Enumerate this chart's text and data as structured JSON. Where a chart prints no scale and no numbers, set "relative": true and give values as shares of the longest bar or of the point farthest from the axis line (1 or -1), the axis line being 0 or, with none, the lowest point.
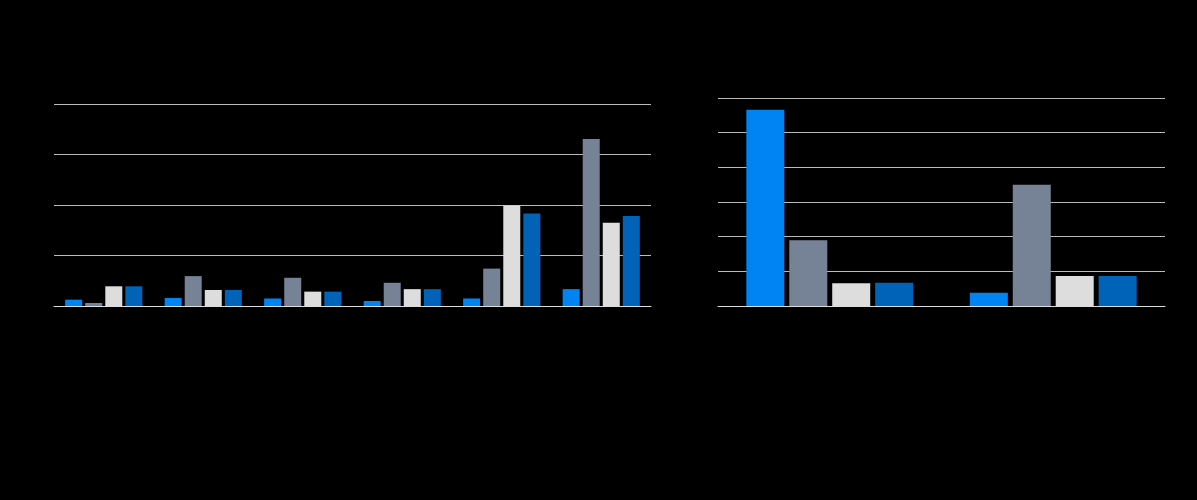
{
  "chart_data": [
    {
      "type": "bar",
      "relative": true,
      "grid": "y",
      "categories": [
        null,
        null,
        null,
        null,
        null,
        null
      ],
      "series": [
        {
          "color": "#0084f4",
          "values": [
            0.038,
            0.048,
            0.045,
            0.03,
            0.045,
            0.101
          ]
        },
        {
          "color": "#768396",
          "values": [
            0.01,
            0.179,
            0.169,
            0.139,
            0.224,
            1
          ]
        },
        {
          "color": "#dddddd",
          "values": [
            0.118,
            0.096,
            0.086,
            0.101,
            0.602,
            0.499
          ]
        },
        {
          "color": "#0063b8",
          "values": [
            0.118,
            0.096,
            0.086,
            0.101,
            0.554,
            0.539
          ]
        }
      ]
    },
    {
      "type": "bar",
      "relative": true,
      "grid": "y",
      "categories": [
        null,
        null
      ],
      "series": [
        {
          "color": "#0084f4",
          "values": [
            1,
            0.068
          ]
        },
        {
          "color": "#768396",
          "values": [
            0.335,
            0.618
          ]
        },
        {
          "color": "#dddddd",
          "values": [
            0.116,
            0.153
          ]
        },
        {
          "color": "#0063b8",
          "values": [
            0.118,
            0.153
          ]
        }
      ]
    }
  ]
}
